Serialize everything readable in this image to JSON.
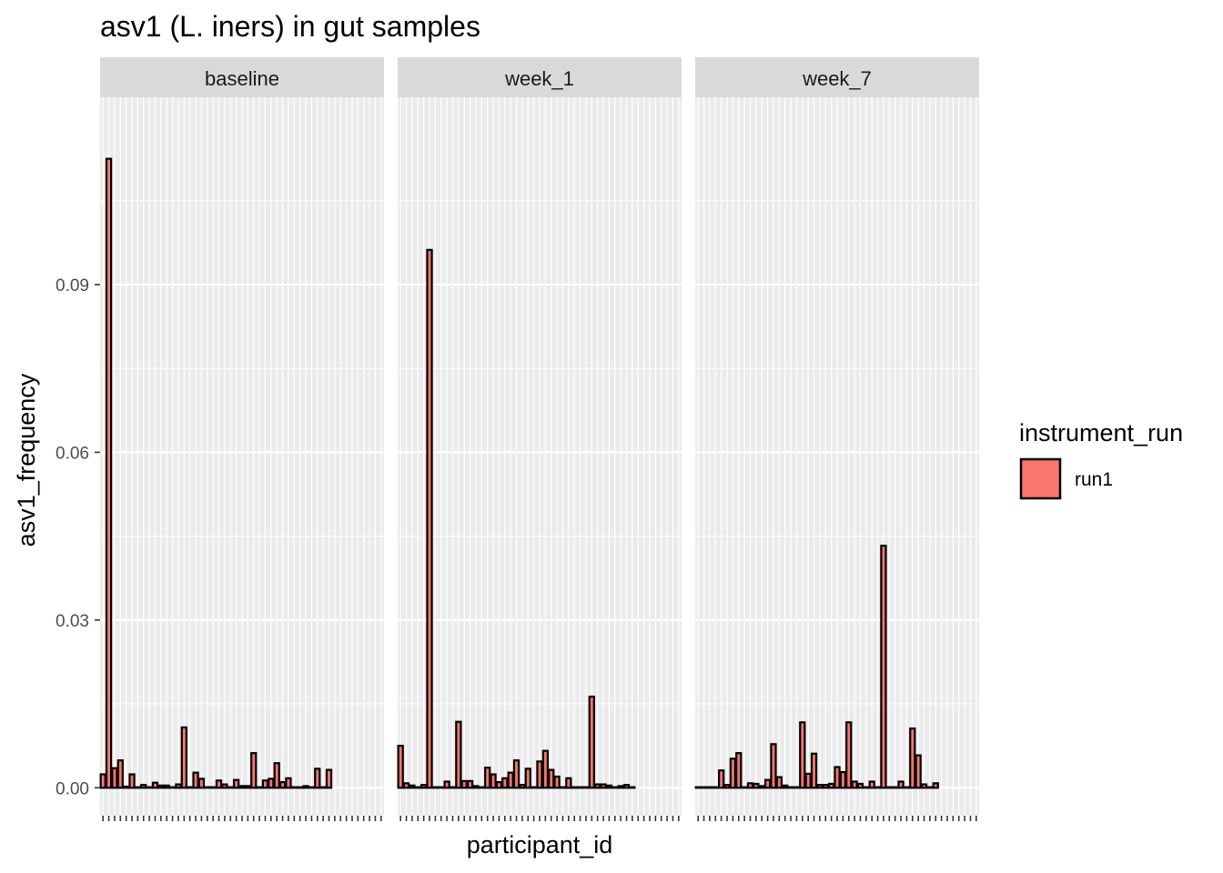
{
  "chart_data": {
    "type": "bar",
    "title": "asv1 (L. iners) in gut samples",
    "xlabel": "participant_id",
    "ylabel": "asv1_frequency",
    "ylim": [
      -0.005,
      0.1235
    ],
    "yticks": [
      0,
      0.03,
      0.06,
      0.09
    ],
    "ytick_labels": [
      "0.00",
      "0.03",
      "0.06",
      "0.09"
    ],
    "grid": true,
    "legend_placement": "right",
    "legend": {
      "title": "instrument_run",
      "entries": [
        {
          "label": "run1",
          "color": "#F8766D"
        }
      ]
    },
    "colors": {
      "bar_fill": "#F8766D",
      "bar_stroke": "#000000",
      "panel_bg": "#EBEBEB",
      "strip_bg": "#D9D9D9",
      "grid": "#FFFFFF"
    },
    "n_participants": 49,
    "facets": [
      {
        "label": "baseline",
        "values": [
          0.0024,
          0.1125,
          0.0035,
          0.0049,
          0.0002,
          0.0024,
          0.0001,
          0.0005,
          0.0001,
          0.0009,
          0.0004,
          0.0004,
          0.0001,
          0.0006,
          0.0108,
          0.0001,
          0.0027,
          0.0016,
          0.0001,
          0.0001,
          0.0013,
          0.0006,
          0.0001,
          0.0014,
          0.0003,
          0.0003,
          0.0062,
          0.0001,
          0.0013,
          0.0016,
          0.0044,
          0.001,
          0.0017,
          0.0001,
          0.0001,
          0.0003,
          0.0001,
          0.0034,
          0.0001,
          0.0032
        ]
      },
      {
        "label": "week_1",
        "values": [
          0.0075,
          0.0008,
          0.0004,
          0.0001,
          0.0005,
          0.0962,
          0.0001,
          0.0001,
          0.0011,
          0.0001,
          0.0118,
          0.0012,
          0.0012,
          0.0003,
          0.0001,
          0.0036,
          0.0024,
          0.001,
          0.0017,
          0.0027,
          0.0049,
          0.0005,
          0.0034,
          0.0001,
          0.0047,
          0.0066,
          0.0032,
          0.002,
          0.0001,
          0.0017,
          0.0001,
          0.0001,
          0.0001,
          0.0163,
          0.0006,
          0.0006,
          0.0004,
          0.0001,
          0.0003,
          0.0005,
          0.0001
        ]
      },
      {
        "label": "week_7",
        "values": [
          0.0001,
          0.0001,
          0.0001,
          0.0001,
          0.0031,
          0.0005,
          0.0052,
          0.0062,
          0.0001,
          0.0008,
          0.0007,
          0.0003,
          0.0014,
          0.0078,
          0.0019,
          0.0004,
          0.0001,
          0.0001,
          0.0117,
          0.0025,
          0.0061,
          0.0005,
          0.0005,
          0.0007,
          0.0037,
          0.0028,
          0.0117,
          0.0011,
          0.0007,
          0.0001,
          0.0011,
          0.0001,
          0.0433,
          0.0001,
          0.0001,
          0.0011,
          0.0001,
          0.0106,
          0.0058,
          0.0006,
          0.0001,
          0.0008
        ]
      }
    ]
  }
}
